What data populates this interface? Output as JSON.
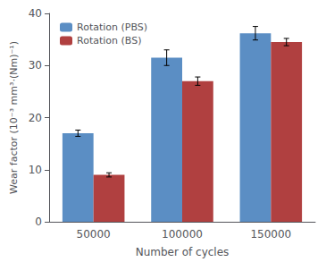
{
  "chart_data": {
    "type": "bar",
    "xlabel": "Number of cycles",
    "ylabel": "Wear factor (10⁻³ mm³·(Nm)⁻¹)",
    "categories": [
      "50000",
      "100000",
      "150000"
    ],
    "series": [
      {
        "name": "Rotation (PBS)",
        "color": "#5b8ec4",
        "values": [
          17.0,
          31.5,
          36.2
        ],
        "errors": [
          0.6,
          1.5,
          1.3
        ]
      },
      {
        "name": "Rotation (BS)",
        "color": "#b04040",
        "values": [
          9.0,
          27.0,
          34.5
        ],
        "errors": [
          0.4,
          0.8,
          0.7
        ]
      }
    ],
    "ylim": [
      0,
      40
    ],
    "yticks": [
      0,
      10,
      20,
      30,
      40
    ],
    "grid": false,
    "legend": "upper left"
  }
}
